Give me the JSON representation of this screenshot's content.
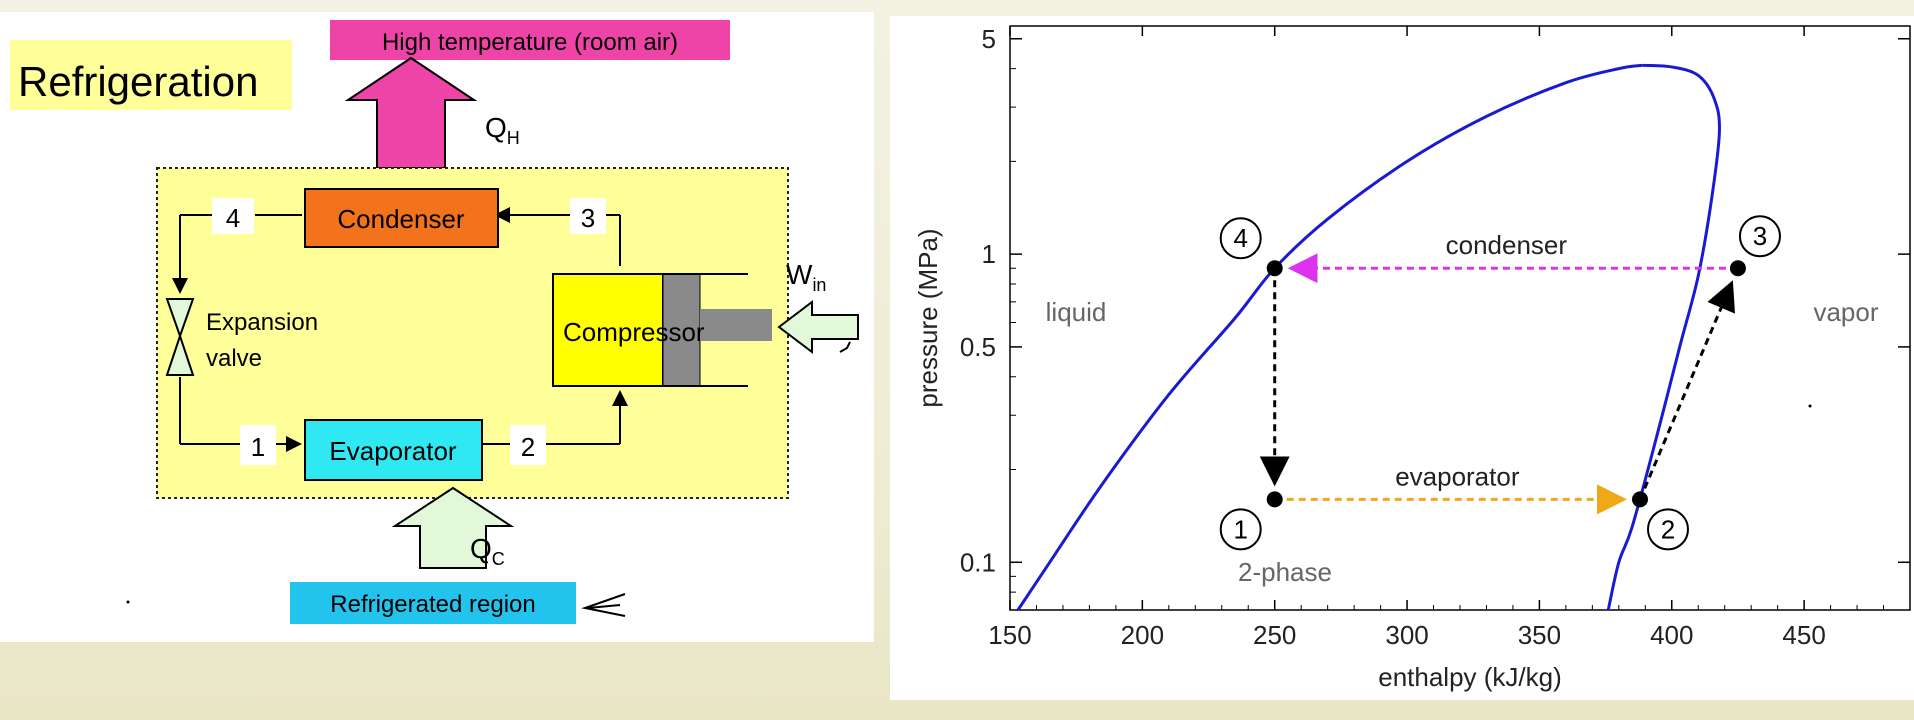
{
  "left": {
    "title": "Refrigeration",
    "high_temp_label": "High temperature (room air)",
    "qh_main": "Q",
    "qh_sub": "H",
    "condenser": "Condenser",
    "evaporator": "Evaporator",
    "compressor": "Compressor",
    "expansion_line1": "Expansion",
    "expansion_line2": "valve",
    "win_main": "W",
    "win_sub": "in",
    "qc_main": "Q",
    "qc_sub": "C",
    "refrigerated_label": "Refrigerated region",
    "state_labels": [
      "1",
      "2",
      "3",
      "4"
    ],
    "colors": {
      "high_temp_box": "#ee44a8",
      "qh_arrow": "#ee44a8",
      "condenser": "#f2731c",
      "evaporator": "#2fe8f2",
      "compressor": "#ffff00",
      "system_box": "#ffff99",
      "arrow_light": "#e2f8d8",
      "refrigerated_box": "#22c4ee"
    }
  },
  "chart_data": {
    "type": "line",
    "xlabel": "enthalpy (kJ/kg)",
    "ylabel": "pressure (MPa)",
    "xlim": [
      150,
      490
    ],
    "ylim": [
      0.07,
      5.5
    ],
    "y_scale": "log",
    "x_ticks": [
      150,
      200,
      250,
      300,
      350,
      400,
      450
    ],
    "y_ticks": [
      0.1,
      0.5,
      1,
      5
    ],
    "y_tick_labels": [
      "0.1",
      "0.5",
      "1",
      "5"
    ],
    "dome": {
      "color": "#1a1ad0",
      "liquid_line": [
        [
          153,
          0.07
        ],
        [
          165,
          0.1
        ],
        [
          185,
          0.18
        ],
        [
          210,
          0.35
        ],
        [
          235,
          0.62
        ],
        [
          250,
          0.9
        ],
        [
          270,
          1.3
        ],
        [
          300,
          2.0
        ],
        [
          330,
          2.8
        ],
        [
          360,
          3.6
        ],
        [
          380,
          4.0
        ],
        [
          389,
          4.1
        ]
      ],
      "vapor_line": [
        [
          389,
          4.1
        ],
        [
          400,
          4.05
        ],
        [
          410,
          3.8
        ],
        [
          416,
          3.2
        ],
        [
          418,
          2.5
        ],
        [
          415,
          1.5
        ],
        [
          410,
          0.85
        ],
        [
          403,
          0.5
        ],
        [
          394,
          0.25
        ],
        [
          385,
          0.13
        ],
        [
          380,
          0.1
        ],
        [
          376,
          0.07
        ]
      ]
    },
    "states": [
      {
        "label": "1",
        "h": 250,
        "p": 0.16
      },
      {
        "label": "2",
        "h": 388,
        "p": 0.16
      },
      {
        "label": "3",
        "h": 425,
        "p": 0.9
      },
      {
        "label": "4",
        "h": 250,
        "p": 0.9
      }
    ],
    "processes": [
      {
        "from": "1",
        "to": "2",
        "label": "evaporator",
        "color": "#eea818"
      },
      {
        "from": "2",
        "to": "3",
        "label": "",
        "color": "#000000"
      },
      {
        "from": "3",
        "to": "4",
        "label": "condenser",
        "color": "#dd33ee"
      },
      {
        "from": "4",
        "to": "1",
        "label": "",
        "color": "#000000"
      }
    ],
    "region_labels": [
      "liquid",
      "vapor",
      "2-phase"
    ]
  }
}
